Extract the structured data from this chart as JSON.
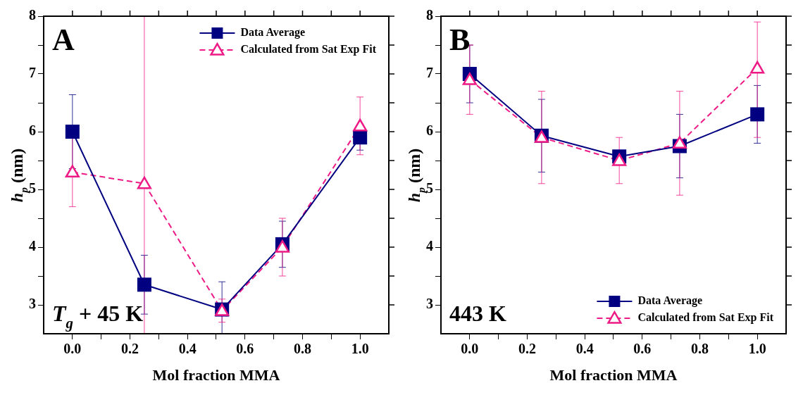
{
  "chart_data": [
    {
      "type": "line",
      "xlabel": "Mol fraction MMA",
      "ylabel": "h$_{p}$ (nm)",
      "annotations": [
        "A",
        "T$_{g}$ + 45 K"
      ],
      "legend": "top right",
      "grid": false,
      "x": [
        0,
        0.25,
        0.52,
        0.73,
        1.0
      ],
      "xlim": [
        -0.1,
        1.1
      ],
      "xticks": [
        {
          "value": 0,
          "label": "0.0"
        },
        {
          "value": 0.1,
          "label": null
        },
        {
          "value": 0.2,
          "label": "0.2"
        },
        {
          "value": 0.3,
          "label": null
        },
        {
          "value": 0.4,
          "label": "0.4"
        },
        {
          "value": 0.5,
          "label": null
        },
        {
          "value": 0.6,
          "label": "0.6"
        },
        {
          "value": 0.7,
          "label": null
        },
        {
          "value": 0.8,
          "label": "0.8"
        },
        {
          "value": 0.9,
          "label": null
        },
        {
          "value": 1.0,
          "label": "1.0"
        }
      ],
      "ylim": [
        2.5,
        8
      ],
      "yticks": [
        3,
        {
          "value": 3.5,
          "label": null
        },
        4,
        {
          "value": 4.5,
          "label": null
        },
        5,
        {
          "value": 5.5,
          "label": null
        },
        6,
        {
          "value": 6.5,
          "label": null
        },
        7,
        {
          "value": 7.5,
          "label": null
        },
        8
      ],
      "series": [
        {
          "name": "Data Average",
          "color": "#000080",
          "marker": "square",
          "line_style": "solid",
          "values": [
            6.0,
            3.35,
            2.92,
            4.05,
            5.9
          ],
          "errors": [
            [
              5.36,
              6.64
            ],
            [
              2.84,
              3.86
            ],
            [
              2.5,
              3.4
            ],
            [
              3.65,
              4.45
            ],
            [
              5.68,
              6.12
            ]
          ]
        },
        {
          "name": "Calculated from Sat Exp Fit",
          "color": "#ee1a85",
          "marker": "triangle",
          "line_style": "dashed",
          "values": [
            5.3,
            5.1,
            2.9,
            4.0,
            6.1
          ],
          "errors": [
            [
              4.7,
              5.9
            ],
            [
              2.5,
              8
            ],
            [
              2.7,
              3.1
            ],
            [
              3.5,
              4.5
            ],
            [
              5.6,
              6.6
            ]
          ]
        }
      ]
    },
    {
      "type": "line",
      "xlabel": "Mol fraction MMA",
      "ylabel": "h$_{p}$ (nm)",
      "annotations": [
        "B",
        "443 K"
      ],
      "legend": "bottom right",
      "grid": false,
      "x": [
        0,
        0.25,
        0.52,
        0.73,
        1.0
      ],
      "xlim": [
        -0.1,
        1.1
      ],
      "xticks": [
        {
          "value": 0,
          "label": "0.0"
        },
        {
          "value": 0.1,
          "label": null
        },
        {
          "value": 0.2,
          "label": "0.2"
        },
        {
          "value": 0.3,
          "label": null
        },
        {
          "value": 0.4,
          "label": "0.4"
        },
        {
          "value": 0.5,
          "label": null
        },
        {
          "value": 0.6,
          "label": "0.6"
        },
        {
          "value": 0.7,
          "label": null
        },
        {
          "value": 0.8,
          "label": "0.8"
        },
        {
          "value": 0.9,
          "label": null
        },
        {
          "value": 1.0,
          "label": "1.0"
        }
      ],
      "ylim": [
        2.5,
        8
      ],
      "yticks": [
        3,
        {
          "value": 3.5,
          "label": null
        },
        4,
        {
          "value": 4.5,
          "label": null
        },
        5,
        {
          "value": 5.5,
          "label": null
        },
        6,
        {
          "value": 6.5,
          "label": null
        },
        7,
        {
          "value": 7.5,
          "label": null
        },
        8
      ],
      "series": [
        {
          "name": "Data Average",
          "color": "#000080",
          "marker": "square",
          "line_style": "solid",
          "values": [
            7.0,
            5.93,
            5.57,
            5.75,
            6.3
          ],
          "errors": [
            [
              6.5,
              7.5
            ],
            [
              5.3,
              6.56
            ],
            null,
            [
              5.2,
              6.3
            ],
            [
              5.8,
              6.8
            ]
          ]
        },
        {
          "name": "Calculated from Sat Exp Fit",
          "color": "#ee1a85",
          "marker": "triangle",
          "line_style": "dashed",
          "values": [
            6.9,
            5.9,
            5.5,
            5.8,
            7.1
          ],
          "errors": [
            [
              6.3,
              7.5
            ],
            [
              5.1,
              6.7
            ],
            [
              5.1,
              5.9
            ],
            [
              4.9,
              6.7
            ],
            [
              5.9,
              7.9
            ]
          ]
        }
      ]
    }
  ]
}
